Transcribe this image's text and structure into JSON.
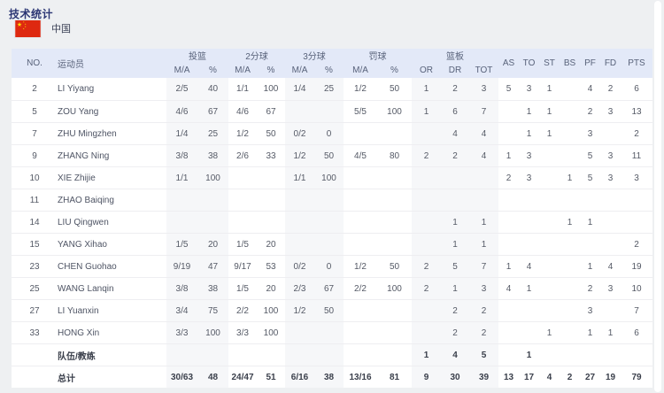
{
  "page": {
    "title": "技术统计",
    "team": "中国"
  },
  "colors": {
    "page_bg": "#eef0f2",
    "card_bg": "#ffffff",
    "title": "#2b3674",
    "header_bg": "#e3e9f8",
    "header_text": "#58627a",
    "band": "#f6f7f9",
    "row_text": "#555a66",
    "bold_text": "#3a3f4b",
    "separator": "#eeeef1",
    "flag_red": "#de2910",
    "flag_yellow": "#ffde00"
  },
  "table": {
    "header": {
      "no": "NO.",
      "player": "运动员",
      "groups": [
        {
          "label": "投篮",
          "subs": [
            "M/A",
            "%"
          ]
        },
        {
          "label": "2分球",
          "subs": [
            "M/A",
            "%"
          ]
        },
        {
          "label": "3分球",
          "subs": [
            "M/A",
            "%"
          ]
        },
        {
          "label": "罚球",
          "subs": [
            "M/A",
            "%"
          ]
        },
        {
          "label": "篮板",
          "subs": [
            "OR",
            "DR",
            "TOT"
          ]
        }
      ],
      "stats": [
        "AS",
        "TO",
        "ST",
        "BS",
        "PF",
        "FD",
        "PTS"
      ]
    },
    "rows": [
      {
        "type": "player",
        "no": "2",
        "player": "LI Yiyang",
        "fg": "2/5",
        "fg_pct": "40",
        "p2": "1/1",
        "p2_pct": "100",
        "p3": "1/4",
        "p3_pct": "25",
        "ft": "1/2",
        "ft_pct": "50",
        "or": "1",
        "dr": "2",
        "tot": "3",
        "as": "5",
        "to": "3",
        "st": "1",
        "bs": "",
        "pf": "4",
        "fd": "2",
        "pts": "6"
      },
      {
        "type": "player",
        "no": "5",
        "player": "ZOU Yang",
        "fg": "4/6",
        "fg_pct": "67",
        "p2": "4/6",
        "p2_pct": "67",
        "p3": "",
        "p3_pct": "",
        "ft": "5/5",
        "ft_pct": "100",
        "or": "1",
        "dr": "6",
        "tot": "7",
        "as": "",
        "to": "1",
        "st": "1",
        "bs": "",
        "pf": "2",
        "fd": "3",
        "pts": "13"
      },
      {
        "type": "player",
        "no": "7",
        "player": "ZHU Mingzhen",
        "fg": "1/4",
        "fg_pct": "25",
        "p2": "1/2",
        "p2_pct": "50",
        "p3": "0/2",
        "p3_pct": "0",
        "ft": "",
        "ft_pct": "",
        "or": "",
        "dr": "4",
        "tot": "4",
        "as": "",
        "to": "1",
        "st": "1",
        "bs": "",
        "pf": "3",
        "fd": "",
        "pts": "2"
      },
      {
        "type": "player",
        "no": "9",
        "player": "ZHANG Ning",
        "fg": "3/8",
        "fg_pct": "38",
        "p2": "2/6",
        "p2_pct": "33",
        "p3": "1/2",
        "p3_pct": "50",
        "ft": "4/5",
        "ft_pct": "80",
        "or": "2",
        "dr": "2",
        "tot": "4",
        "as": "1",
        "to": "3",
        "st": "",
        "bs": "",
        "pf": "5",
        "fd": "3",
        "pts": "11"
      },
      {
        "type": "player",
        "no": "10",
        "player": "XIE Zhijie",
        "fg": "1/1",
        "fg_pct": "100",
        "p2": "",
        "p2_pct": "",
        "p3": "1/1",
        "p3_pct": "100",
        "ft": "",
        "ft_pct": "",
        "or": "",
        "dr": "",
        "tot": "",
        "as": "2",
        "to": "3",
        "st": "",
        "bs": "1",
        "pf": "5",
        "fd": "3",
        "pts": "3"
      },
      {
        "type": "player",
        "no": "11",
        "player": "ZHAO Baiqing",
        "fg": "",
        "fg_pct": "",
        "p2": "",
        "p2_pct": "",
        "p3": "",
        "p3_pct": "",
        "ft": "",
        "ft_pct": "",
        "or": "",
        "dr": "",
        "tot": "",
        "as": "",
        "to": "",
        "st": "",
        "bs": "",
        "pf": "",
        "fd": "",
        "pts": ""
      },
      {
        "type": "player",
        "no": "14",
        "player": "LIU Qingwen",
        "fg": "",
        "fg_pct": "",
        "p2": "",
        "p2_pct": "",
        "p3": "",
        "p3_pct": "",
        "ft": "",
        "ft_pct": "",
        "or": "",
        "dr": "1",
        "tot": "1",
        "as": "",
        "to": "",
        "st": "",
        "bs": "1",
        "pf": "1",
        "fd": "",
        "pts": ""
      },
      {
        "type": "player",
        "no": "15",
        "player": "YANG Xihao",
        "fg": "1/5",
        "fg_pct": "20",
        "p2": "1/5",
        "p2_pct": "20",
        "p3": "",
        "p3_pct": "",
        "ft": "",
        "ft_pct": "",
        "or": "",
        "dr": "1",
        "tot": "1",
        "as": "",
        "to": "",
        "st": "",
        "bs": "",
        "pf": "",
        "fd": "",
        "pts": "2"
      },
      {
        "type": "player",
        "no": "23",
        "player": "CHEN Guohao",
        "fg": "9/19",
        "fg_pct": "47",
        "p2": "9/17",
        "p2_pct": "53",
        "p3": "0/2",
        "p3_pct": "0",
        "ft": "1/2",
        "ft_pct": "50",
        "or": "2",
        "dr": "5",
        "tot": "7",
        "as": "1",
        "to": "4",
        "st": "",
        "bs": "",
        "pf": "1",
        "fd": "4",
        "pts": "19"
      },
      {
        "type": "player",
        "no": "25",
        "player": "WANG Lanqin",
        "fg": "3/8",
        "fg_pct": "38",
        "p2": "1/5",
        "p2_pct": "20",
        "p3": "2/3",
        "p3_pct": "67",
        "ft": "2/2",
        "ft_pct": "100",
        "or": "2",
        "dr": "1",
        "tot": "3",
        "as": "4",
        "to": "1",
        "st": "",
        "bs": "",
        "pf": "2",
        "fd": "3",
        "pts": "10"
      },
      {
        "type": "player",
        "no": "27",
        "player": "LI Yuanxin",
        "fg": "3/4",
        "fg_pct": "75",
        "p2": "2/2",
        "p2_pct": "100",
        "p3": "1/2",
        "p3_pct": "50",
        "ft": "",
        "ft_pct": "",
        "or": "",
        "dr": "2",
        "tot": "2",
        "as": "",
        "to": "",
        "st": "",
        "bs": "",
        "pf": "3",
        "fd": "",
        "pts": "7"
      },
      {
        "type": "player",
        "no": "33",
        "player": "HONG Xin",
        "fg": "3/3",
        "fg_pct": "100",
        "p2": "3/3",
        "p2_pct": "100",
        "p3": "",
        "p3_pct": "",
        "ft": "",
        "ft_pct": "",
        "or": "",
        "dr": "2",
        "tot": "2",
        "as": "",
        "to": "",
        "st": "1",
        "bs": "",
        "pf": "1",
        "fd": "1",
        "pts": "6"
      },
      {
        "type": "team",
        "no": "",
        "player": "队伍/教练",
        "fg": "",
        "fg_pct": "",
        "p2": "",
        "p2_pct": "",
        "p3": "",
        "p3_pct": "",
        "ft": "",
        "ft_pct": "",
        "or": "1",
        "dr": "4",
        "tot": "5",
        "as": "",
        "to": "1",
        "st": "",
        "bs": "",
        "pf": "",
        "fd": "",
        "pts": ""
      },
      {
        "type": "total",
        "no": "",
        "player": "总计",
        "fg": "30/63",
        "fg_pct": "48",
        "p2": "24/47",
        "p2_pct": "51",
        "p3": "6/16",
        "p3_pct": "38",
        "ft": "13/16",
        "ft_pct": "81",
        "or": "9",
        "dr": "30",
        "tot": "39",
        "as": "13",
        "to": "17",
        "st": "4",
        "bs": "2",
        "pf": "27",
        "fd": "19",
        "pts": "79"
      }
    ]
  }
}
